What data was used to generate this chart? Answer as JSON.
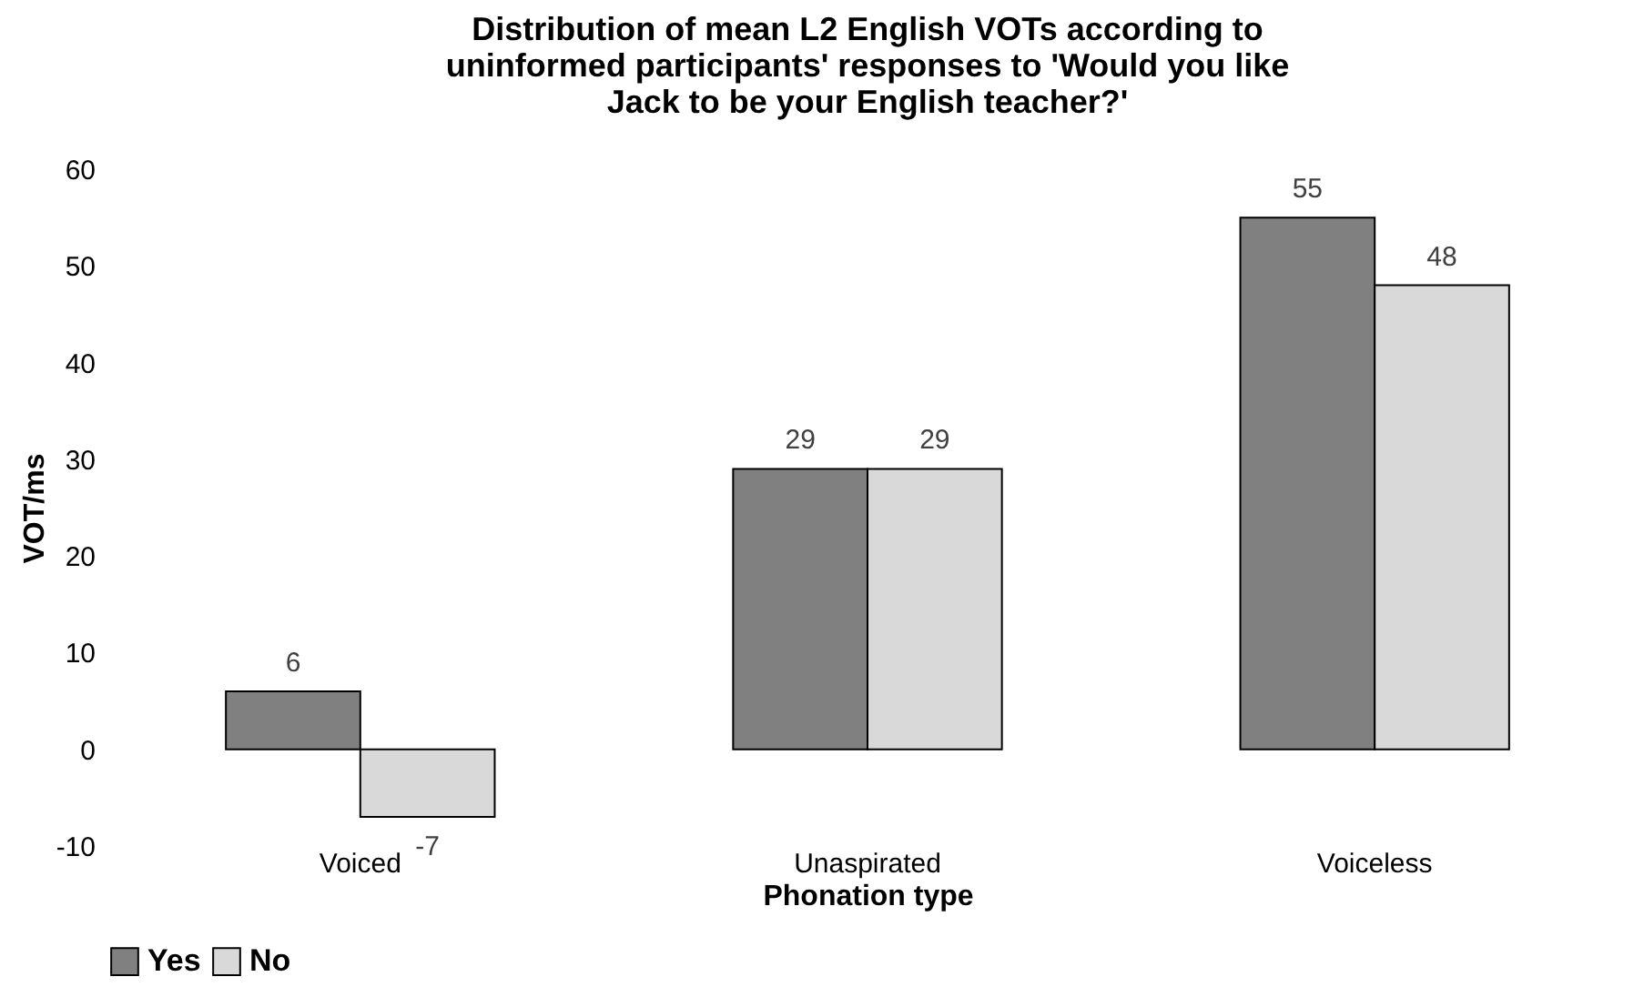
{
  "chart_data": {
    "type": "bar",
    "title": "Distribution of mean L2 English VOTs according to uninformed participants' responses to 'Would you like Jack to be your English teacher?'",
    "xlabel": "Phonation type",
    "ylabel": "VOT/ms",
    "categories": [
      "Voiced",
      "Unaspirated",
      "Voiceless"
    ],
    "series": [
      {
        "name": "Yes",
        "color": "#808080",
        "values": [
          6,
          29,
          55
        ]
      },
      {
        "name": "No",
        "color": "#d9d9d9",
        "values": [
          -7,
          29,
          48
        ]
      }
    ],
    "ylim": [
      -10,
      60
    ],
    "yticks": [
      -10,
      0,
      10,
      20,
      30,
      40,
      50,
      60
    ],
    "grid": false,
    "legend": "bottom",
    "data_labels": true
  }
}
